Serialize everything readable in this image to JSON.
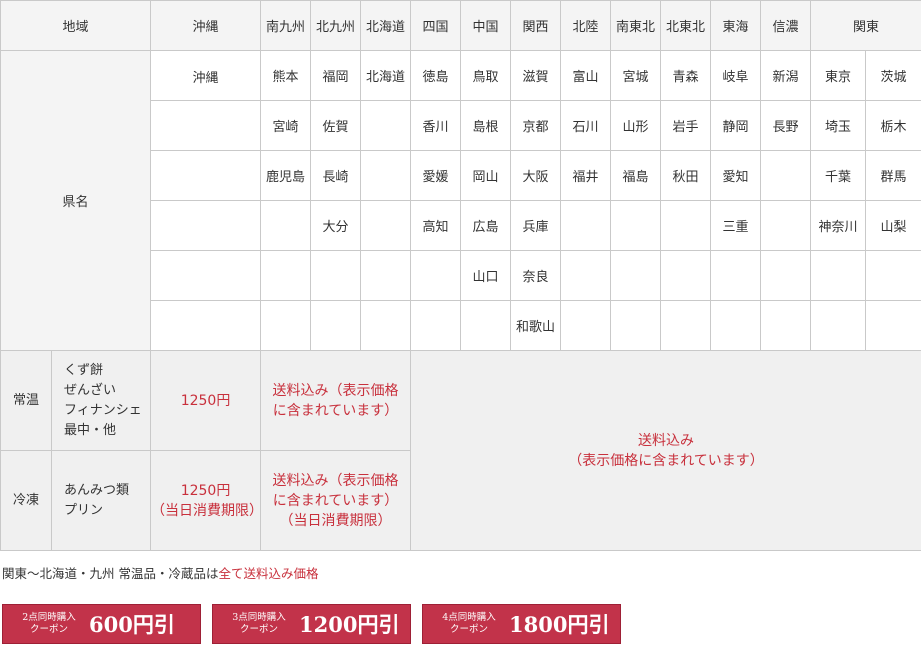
{
  "header": {
    "region": "地域",
    "regions": [
      "沖縄",
      "南九州",
      "北九州",
      "北海道",
      "四国",
      "中国",
      "関西",
      "北陸",
      "南東北",
      "北東北",
      "東海",
      "信濃",
      "関東"
    ]
  },
  "prefectures_label": "県名",
  "prefectures": [
    [
      "沖縄",
      "熊本",
      "福岡",
      "北海道",
      "徳島",
      "鳥取",
      "滋賀",
      "富山",
      "宮城",
      "青森",
      "岐阜",
      "新潟",
      "東京",
      "茨城"
    ],
    [
      "",
      "宮崎",
      "佐賀",
      "",
      "香川",
      "島根",
      "京都",
      "石川",
      "山形",
      "岩手",
      "静岡",
      "長野",
      "埼玉",
      "栃木"
    ],
    [
      "",
      "鹿児島",
      "長崎",
      "",
      "愛媛",
      "岡山",
      "大阪",
      "福井",
      "福島",
      "秋田",
      "愛知",
      "",
      "千葉",
      "群馬"
    ],
    [
      "",
      "",
      "大分",
      "",
      "高知",
      "広島",
      "兵庫",
      "",
      "",
      "",
      "三重",
      "",
      "神奈川",
      "山梨"
    ],
    [
      "",
      "",
      "",
      "",
      "",
      "山口",
      "奈良",
      "",
      "",
      "",
      "",
      "",
      "",
      ""
    ],
    [
      "",
      "",
      "",
      "",
      "",
      "",
      "和歌山",
      "",
      "",
      "",
      "",
      "",
      "",
      ""
    ]
  ],
  "fees": {
    "room_temp": {
      "label": "常温",
      "items": [
        "くず餅",
        "ぜんざい",
        "フィナンシェ",
        "最中・他"
      ],
      "price": "1250円",
      "south_kyushu": [
        "送料込み（表示価格",
        "に含まれています）"
      ]
    },
    "frozen": {
      "label": "冷凍",
      "items": [
        "あんみつ類",
        "プリン"
      ],
      "price": [
        "1250円",
        "（当日消費期限）"
      ],
      "south_kyushu": [
        "送料込み（表示価格",
        "に含まれています）",
        "（当日消費期限）"
      ]
    },
    "others": [
      "送料込み",
      "（表示価格に含まれています）"
    ]
  },
  "note": {
    "text": "関東～北海道・九州 常温品・冷蔵品は",
    "red": "全て送料込み価格"
  },
  "coupons": [
    {
      "caption1": "2点同時購入",
      "caption2": "クーポン",
      "amount": "600円引"
    },
    {
      "caption1": "3点同時購入",
      "caption2": "クーポン",
      "amount": "1200円引"
    },
    {
      "caption1": "4点同時購入",
      "caption2": "クーポン",
      "amount": "1800円引"
    }
  ],
  "colors": {
    "accent_red": "#c8303c",
    "coupon_bg": "#c2334a",
    "header_bg": "#f4f4f4",
    "fee_bg": "#f0f0f0"
  }
}
